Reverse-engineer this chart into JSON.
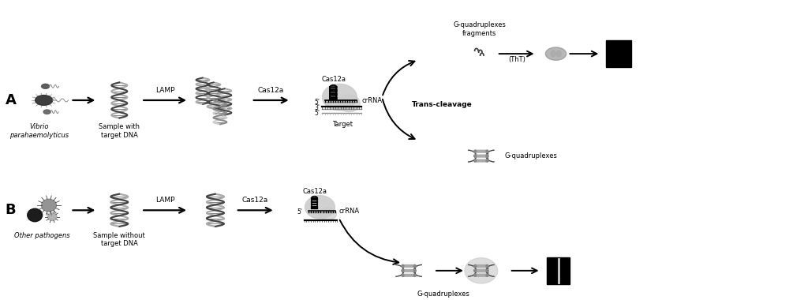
{
  "bg_color": "#ffffff",
  "label_A": "A",
  "label_B": "B",
  "vibrio_label": "Vibrio\nparahaemolyticus",
  "other_pathogens_label": "Other pathogens",
  "sample_with_dna": "Sample with\ntarget DNA",
  "sample_without_dna": "Sample without\ntarget DNA",
  "lamp_label": "LAMP",
  "cas12a_label": "Cas12a",
  "crRNA_label": "crRNA",
  "target_label": "Target",
  "trans_cleavage_label": "Trans-cleavage",
  "g_quad_frag_label": "G-quadruplexes\nfragments",
  "g_quad_label1": "G-quadruplexes",
  "g_quad_label2": "G-quadruplexes",
  "thT_label": "(ThT)",
  "five_prime_1": "5'",
  "three_prime": "3'",
  "five_prime_2": "5'",
  "five_prime_3": "5'",
  "gray_dark": "#444444",
  "gray_mid": "#888888",
  "gray_light": "#aaaaaa",
  "gray_lighter": "#cccccc",
  "gray_lightest": "#e0e0e0",
  "black": "#000000",
  "white": "#ffffff"
}
